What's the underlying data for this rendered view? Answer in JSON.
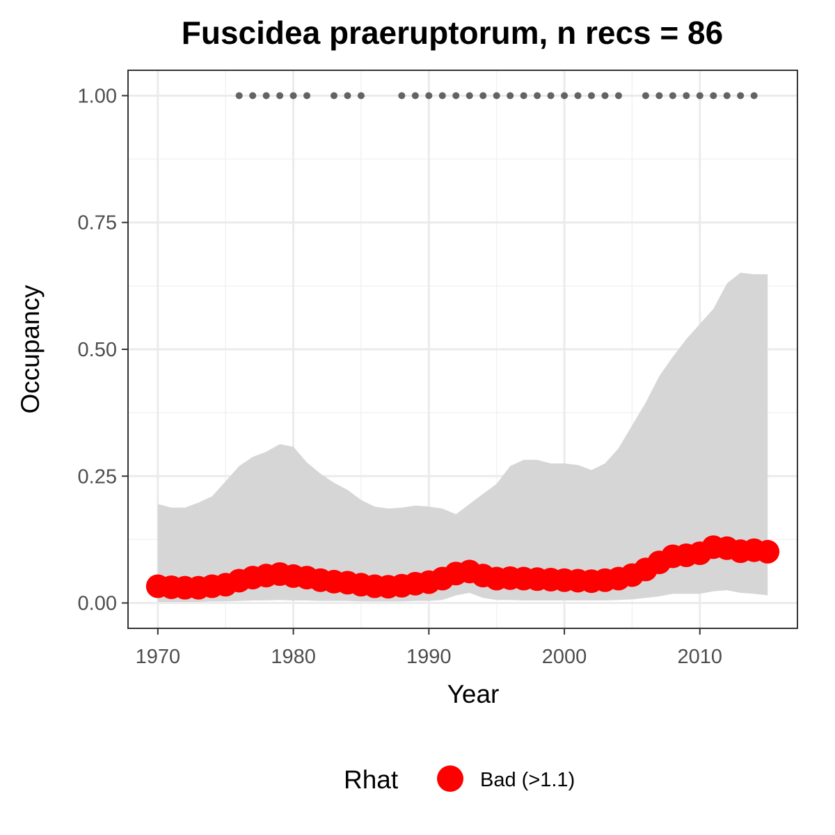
{
  "chart_data": {
    "type": "line",
    "title": "Fuscidea praeruptorum, n recs = 86",
    "xlabel": "Year",
    "ylabel": "Occupancy",
    "xlim": [
      1967.8,
      2017.2
    ],
    "ylim": [
      -0.05,
      1.05
    ],
    "x_ticks": [
      1970,
      1980,
      1990,
      2000,
      2010
    ],
    "x_tick_labels": [
      "1970",
      "1980",
      "1990",
      "2000",
      "2010"
    ],
    "y_ticks": [
      0,
      0.25,
      0.5,
      0.75,
      1.0
    ],
    "y_tick_labels": [
      "0.00",
      "0.25",
      "0.50",
      "0.75",
      "1.00"
    ],
    "grid": true,
    "years": [
      1970,
      1971,
      1972,
      1973,
      1974,
      1975,
      1976,
      1977,
      1978,
      1979,
      1980,
      1981,
      1982,
      1983,
      1984,
      1985,
      1986,
      1987,
      1988,
      1989,
      1990,
      1991,
      1992,
      1993,
      1994,
      1995,
      1996,
      1997,
      1998,
      1999,
      2000,
      2001,
      2002,
      2003,
      2004,
      2005,
      2006,
      2007,
      2008,
      2009,
      2010,
      2011,
      2012,
      2013,
      2014,
      2015
    ],
    "series": [
      {
        "name": "Bad (>1.1)",
        "type": "points",
        "color": "#ff0000",
        "values": [
          0.033,
          0.031,
          0.03,
          0.03,
          0.033,
          0.036,
          0.044,
          0.05,
          0.054,
          0.057,
          0.053,
          0.05,
          0.045,
          0.042,
          0.04,
          0.036,
          0.033,
          0.032,
          0.034,
          0.038,
          0.041,
          0.048,
          0.058,
          0.062,
          0.054,
          0.048,
          0.049,
          0.048,
          0.047,
          0.046,
          0.045,
          0.044,
          0.043,
          0.045,
          0.048,
          0.055,
          0.066,
          0.08,
          0.092,
          0.094,
          0.098,
          0.11,
          0.108,
          0.102,
          0.104,
          0.101
        ]
      },
      {
        "name": "upper",
        "type": "ribbon-upper",
        "color": "#d6d6d6",
        "values": [
          0.195,
          0.188,
          0.188,
          0.198,
          0.21,
          0.24,
          0.27,
          0.288,
          0.298,
          0.313,
          0.308,
          0.277,
          0.255,
          0.237,
          0.223,
          0.203,
          0.19,
          0.186,
          0.188,
          0.192,
          0.19,
          0.186,
          0.175,
          0.195,
          0.215,
          0.235,
          0.27,
          0.282,
          0.282,
          0.275,
          0.275,
          0.272,
          0.262,
          0.275,
          0.305,
          0.35,
          0.395,
          0.447,
          0.485,
          0.52,
          0.55,
          0.58,
          0.63,
          0.651,
          0.648,
          0.648
        ]
      },
      {
        "name": "lower",
        "type": "ribbon-lower",
        "color": "#d6d6d6",
        "values": [
          0.002,
          0.002,
          0.002,
          0.002,
          0.003,
          0.003,
          0.004,
          0.005,
          0.005,
          0.006,
          0.005,
          0.005,
          0.004,
          0.004,
          0.004,
          0.003,
          0.003,
          0.003,
          0.003,
          0.004,
          0.004,
          0.006,
          0.015,
          0.02,
          0.01,
          0.006,
          0.006,
          0.005,
          0.005,
          0.005,
          0.005,
          0.005,
          0.005,
          0.005,
          0.006,
          0.007,
          0.01,
          0.013,
          0.018,
          0.018,
          0.018,
          0.023,
          0.025,
          0.02,
          0.018,
          0.015
        ]
      },
      {
        "name": "records",
        "type": "points",
        "color": "#636363",
        "y": 1.0,
        "x": [
          1976,
          1977,
          1978,
          1979,
          1980,
          1981,
          1983,
          1984,
          1985,
          1988,
          1989,
          1990,
          1991,
          1992,
          1993,
          1994,
          1995,
          1996,
          1997,
          1998,
          1999,
          2000,
          2001,
          2002,
          2003,
          2004,
          2006,
          2007,
          2008,
          2009,
          2010,
          2011,
          2012,
          2013,
          2014
        ]
      }
    ],
    "legend": {
      "position": "bottom",
      "title": "Rhat",
      "entries": [
        {
          "label": "Bad (>1.1)",
          "color": "#ff0000"
        }
      ]
    }
  }
}
